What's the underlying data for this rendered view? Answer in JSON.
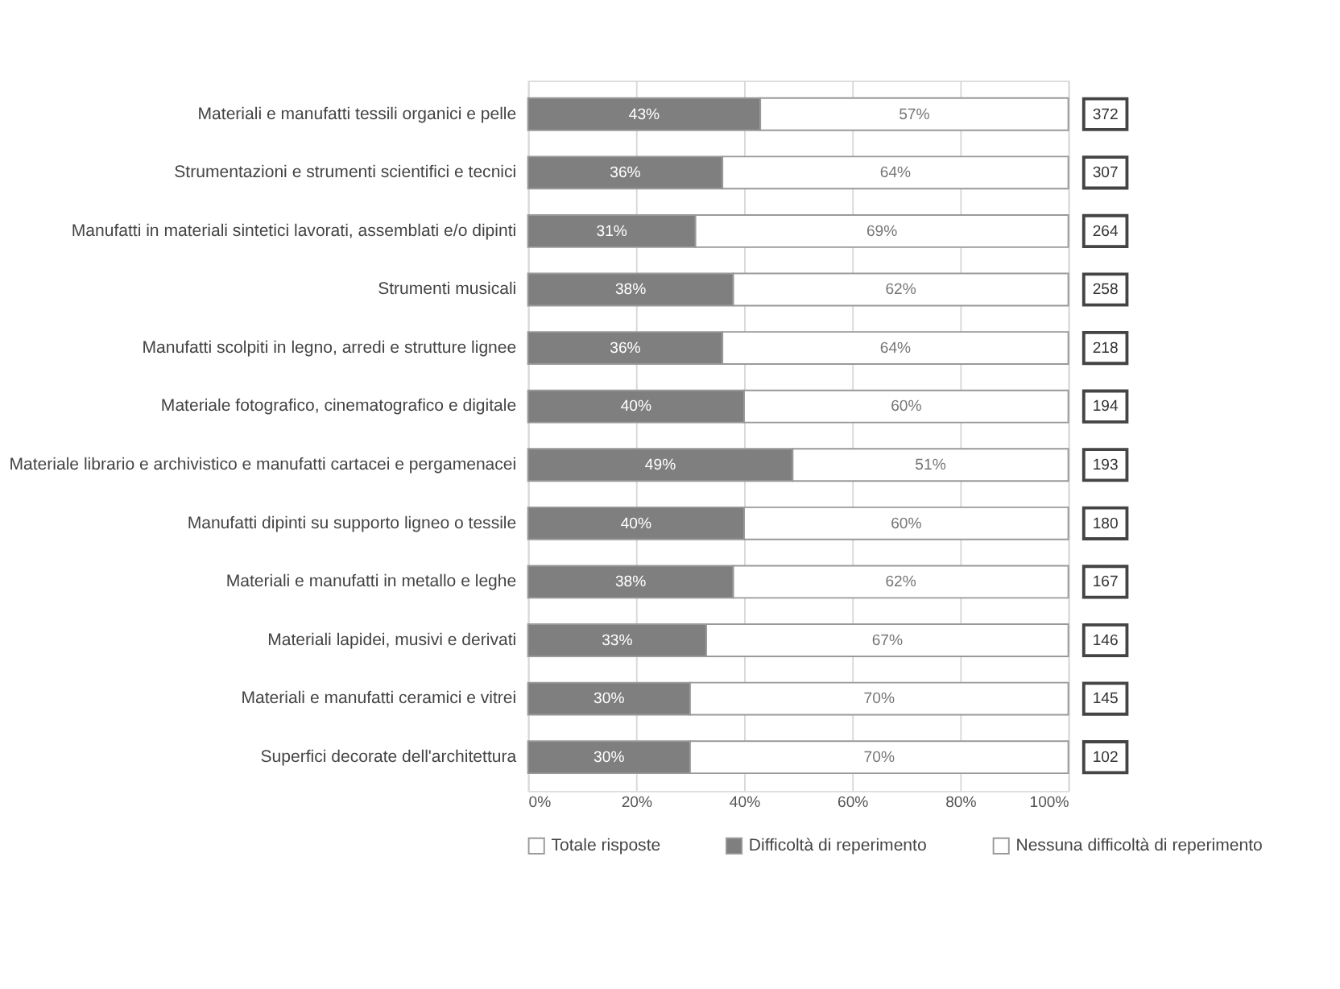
{
  "chart_data": {
    "type": "bar",
    "orientation": "horizontal",
    "stacked": true,
    "categories": [
      "Materiali e manufatti tessili organici e pelle",
      "Strumentazioni e strumenti scientifici e tecnici",
      "Manufatti in materiali sintetici lavorati, assemblati e/o dipinti",
      "Strumenti musicali",
      "Manufatti scolpiti in legno, arredi e strutture lignee",
      "Materiale fotografico, cinematografico e digitale",
      "Materiale librario e archivistico e manufatti cartacei e pergamenacei",
      "Manufatti dipinti su supporto ligneo o tessile",
      "Materiali e manufatti in metallo e leghe",
      "Materiali lapidei, musivi e derivati",
      "Materiali e manufatti ceramici e vitrei",
      "Superfici decorate dell'architettura"
    ],
    "series": [
      {
        "name": "Totale risposte",
        "type": "other",
        "color": "#ffffff",
        "values": [
          null,
          null,
          null,
          null,
          null,
          null,
          null,
          null,
          null,
          null,
          null,
          null
        ],
        "value_labels": [
          "372",
          "307",
          "264",
          "258",
          "218",
          "194",
          "193",
          "180",
          "167",
          "146",
          "145",
          "102"
        ]
      },
      {
        "name": "Difficoltà di reperimento",
        "color": "#7f7f7f",
        "values": [
          43,
          36,
          31,
          38,
          36,
          40,
          49,
          40,
          38,
          33,
          30,
          30
        ],
        "value_labels": [
          "43%",
          "36%",
          "31%",
          "38%",
          "36%",
          "40%",
          "49%",
          "40%",
          "38%",
          "33%",
          "30%",
          "30%"
        ]
      },
      {
        "name": "Nessuna difficoltà di reperimento",
        "color": "#ffffff",
        "values": [
          57,
          64,
          69,
          62,
          64,
          60,
          51,
          60,
          62,
          67,
          70,
          70
        ],
        "value_labels": [
          "57%",
          "64%",
          "69%",
          "62%",
          "64%",
          "60%",
          "51%",
          "60%",
          "62%",
          "67%",
          "70%",
          "70%"
        ]
      }
    ],
    "xlim": [
      0,
      100
    ],
    "xticks": [
      {
        "value": 0,
        "label": "0%"
      },
      {
        "value": 20,
        "label": "20%"
      },
      {
        "value": 40,
        "label": "40%"
      },
      {
        "value": 60,
        "label": "60%"
      },
      {
        "value": 80,
        "label": "80%"
      },
      {
        "value": 100,
        "label": "100%"
      }
    ],
    "grid": "x",
    "legend": "bottom"
  }
}
